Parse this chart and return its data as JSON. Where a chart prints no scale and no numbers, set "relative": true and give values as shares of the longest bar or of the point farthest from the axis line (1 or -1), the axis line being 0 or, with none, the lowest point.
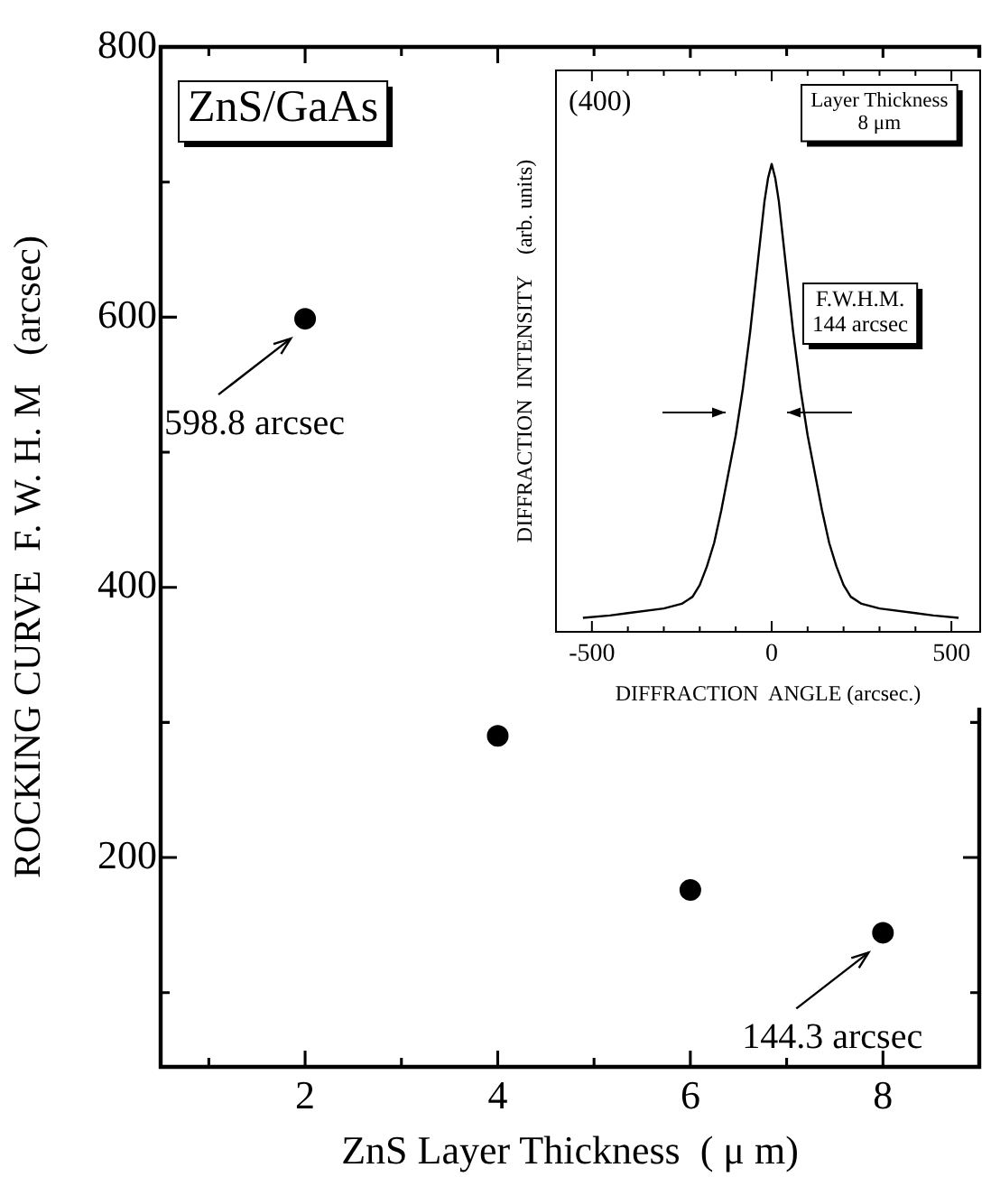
{
  "chart_data": [
    {
      "type": "scatter",
      "xlabel": "ZnS Layer Thickness  ( μ m)",
      "ylabel": "ROCKING CURVE  F. W. H. M   (arcsec)",
      "x": [
        2,
        4,
        6,
        8
      ],
      "values": [
        598.8,
        290,
        176,
        144.3
      ],
      "color": "#000000",
      "marker": "circle",
      "xlim": [
        0.5,
        9
      ],
      "xticks": [
        {
          "value": 1,
          "label": null
        },
        2,
        {
          "value": 3,
          "label": null
        },
        4,
        {
          "value": 5,
          "label": null
        },
        6,
        {
          "value": 7,
          "label": null
        },
        8
      ],
      "ylim": [
        45,
        800
      ],
      "yticks": [
        {
          "value": 100,
          "label": null
        },
        200,
        {
          "value": 300,
          "label": null
        },
        400,
        {
          "value": 500,
          "label": null
        },
        600,
        {
          "value": 700,
          "label": null
        },
        800
      ],
      "annotations": [
        "ZnS/GaAs",
        {
          "text": "598.8 arcsec",
          "x": 2,
          "y": 598.8
        },
        {
          "text": "144.3 arcsec",
          "x": 8,
          "y": 144.3
        }
      ]
    },
    {
      "type": "line",
      "relative": true,
      "xlabel": "DIFFRACTION  ANGLE (arcsec.)",
      "ylabel": "DIFFRACTION  INTENSITY    (arb. units)",
      "x": [
        -525,
        -450,
        -400,
        -300,
        -250,
        -220,
        -200,
        -180,
        -160,
        -140,
        -120,
        -100,
        -80,
        -60,
        -40,
        -20,
        -10,
        0,
        10,
        20,
        40,
        60,
        80,
        100,
        120,
        140,
        160,
        180,
        200,
        220,
        250,
        300,
        400,
        450,
        520
      ],
      "values": [
        0.03,
        0.035,
        0.04,
        0.05,
        0.06,
        0.075,
        0.1,
        0.14,
        0.19,
        0.26,
        0.34,
        0.42,
        0.52,
        0.64,
        0.78,
        0.92,
        0.97,
        1,
        0.97,
        0.92,
        0.78,
        0.64,
        0.52,
        0.42,
        0.34,
        0.26,
        0.19,
        0.14,
        0.1,
        0.075,
        0.06,
        0.05,
        0.04,
        0.035,
        0.03
      ],
      "color": "#000000",
      "marker": "none",
      "xlim": [
        -600,
        580
      ],
      "xticks": [
        -500,
        {
          "value": -400,
          "label": null
        },
        {
          "value": -300,
          "label": null
        },
        {
          "value": -200,
          "label": null
        },
        {
          "value": -100,
          "label": null
        },
        0,
        {
          "value": 100,
          "label": null
        },
        {
          "value": 200,
          "label": null
        },
        {
          "value": 300,
          "label": null
        },
        {
          "value": 400,
          "label": null
        },
        500
      ],
      "annotations": [
        "(400)",
        "Layer Thickness",
        "8 μm",
        "F.W.H.M.",
        "144 arcsec"
      ]
    }
  ]
}
